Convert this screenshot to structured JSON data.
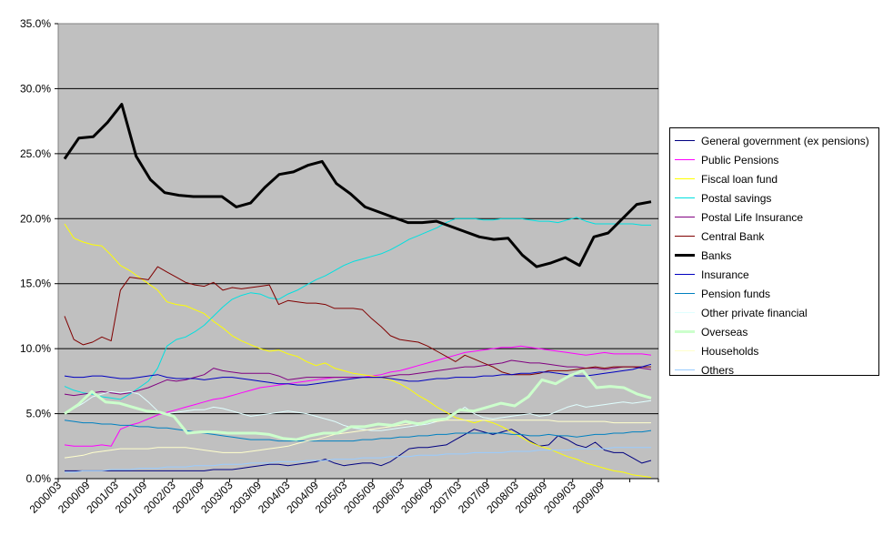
{
  "chart_data": {
    "type": "line",
    "title": "",
    "xlabel": "",
    "ylabel": "",
    "ylim": [
      0,
      35
    ],
    "yticks": [
      "0.0%",
      "5.0%",
      "10.0%",
      "15.0%",
      "20.0%",
      "25.0%",
      "30.0%",
      "35.0%"
    ],
    "x_tick_labels": [
      "2000/03",
      "2000/09",
      "2001/03",
      "2001/09",
      "2002/03",
      "2002/09",
      "2003/03",
      "2003/09",
      "2004/03",
      "2004/09",
      "2005/03",
      "2005/09",
      "2006/03",
      "2006/09",
      "2007/03",
      "2007/09",
      "2008/03",
      "2008/09",
      "2009/03",
      "2009/09"
    ],
    "grid": "horizontal",
    "plot_background": "#c0c0c0",
    "legend_position": "right",
    "series": [
      {
        "name": "General government (ex pensions)",
        "color": "#000080",
        "width": 1,
        "values": [
          0.6,
          0.6,
          0.6,
          0.6,
          0.6,
          0.6,
          0.6,
          0.6,
          0.6,
          0.6,
          0.6,
          0.6,
          0.6,
          0.6,
          0.6,
          0.6,
          0.7,
          0.7,
          0.7,
          0.8,
          0.9,
          1,
          1.1,
          1.1,
          1,
          1.1,
          1.2,
          1.3,
          1.5,
          1.2,
          1,
          1.1,
          1.2,
          1.2,
          1,
          1.3,
          1.8,
          2.3,
          2.4,
          2.4,
          2.5,
          2.6,
          3,
          3.4,
          3.8,
          3.6,
          3.4,
          3.6,
          3.8,
          3.4,
          2.9,
          2.5,
          2.6,
          3.3,
          3,
          2.6,
          2.4,
          2.8,
          2.2,
          2,
          2,
          1.6,
          1.2,
          1.4
        ]
      },
      {
        "name": "Public Pensions",
        "color": "#ff00ff",
        "width": 1,
        "values": [
          2.6,
          2.5,
          2.5,
          2.5,
          2.6,
          2.5,
          3.8,
          4.1,
          4.3,
          4.6,
          4.9,
          5.1,
          5.3,
          5.5,
          5.7,
          5.9,
          6.1,
          6.2,
          6.4,
          6.6,
          6.8,
          7,
          7.1,
          7.2,
          7.3,
          7.4,
          7.5,
          7.6,
          7.7,
          7.8,
          7.8,
          7.8,
          7.8,
          7.9,
          8,
          8.2,
          8.3,
          8.5,
          8.7,
          8.9,
          9.1,
          9.3,
          9.5,
          9.7,
          9.8,
          9.9,
          10,
          10.1,
          10.1,
          10.2,
          10.1,
          10,
          9.9,
          9.8,
          9.7,
          9.6,
          9.5,
          9.6,
          9.7,
          9.6,
          9.6,
          9.6,
          9.6,
          9.5
        ]
      },
      {
        "name": "Fiscal loan fund",
        "color": "#ffff00",
        "width": 1,
        "values": [
          19.6,
          18.5,
          18.2,
          18,
          17.9,
          17.2,
          16.4,
          16,
          15.5,
          15,
          14.5,
          13.6,
          13.4,
          13.3,
          13,
          12.7,
          12.1,
          11.6,
          11,
          10.6,
          10.3,
          10,
          9.8,
          9.9,
          9.6,
          9.4,
          9,
          8.7,
          8.9,
          8.5,
          8.3,
          8.1,
          8,
          7.9,
          7.8,
          7.6,
          7.3,
          6.9,
          6.4,
          6,
          5.5,
          5.1,
          4.7,
          4.5,
          4.3,
          4.5,
          4.3,
          4,
          3.6,
          3.2,
          2.8,
          2.5,
          2.3,
          2,
          1.7,
          1.5,
          1.2,
          1,
          0.8,
          0.6,
          0.5,
          0.3,
          0.2,
          0.1
        ]
      },
      {
        "name": "Postal savings",
        "color": "#00e0e0",
        "width": 1,
        "values": [
          7.1,
          6.8,
          6.6,
          6.5,
          6.3,
          6.2,
          6.1,
          6.5,
          7,
          7.5,
          8.5,
          10.2,
          10.7,
          10.9,
          11.3,
          11.8,
          12.5,
          13.2,
          13.8,
          14.1,
          14.3,
          14.2,
          13.9,
          13.8,
          14.2,
          14.5,
          14.9,
          15.3,
          15.6,
          16,
          16.4,
          16.7,
          16.9,
          17.1,
          17.3,
          17.6,
          18,
          18.4,
          18.7,
          19,
          19.3,
          19.7,
          20,
          20,
          20,
          19.9,
          19.9,
          20,
          20,
          20,
          19.9,
          19.8,
          19.8,
          19.7,
          19.9,
          20.1,
          19.8,
          19.6,
          19.6,
          19.6,
          19.6,
          19.6,
          19.5,
          19.5
        ]
      },
      {
        "name": "Postal Life Insurance",
        "color": "#800080",
        "width": 1,
        "values": [
          6.5,
          6.4,
          6.5,
          6.6,
          6.7,
          6.6,
          6.5,
          6.6,
          6.8,
          7,
          7.3,
          7.6,
          7.5,
          7.6,
          7.8,
          8,
          8.5,
          8.3,
          8.2,
          8.1,
          8.1,
          8.1,
          8.1,
          7.9,
          7.6,
          7.7,
          7.8,
          7.8,
          7.8,
          7.8,
          7.8,
          7.8,
          7.8,
          7.8,
          7.8,
          7.9,
          8,
          8,
          8.1,
          8.2,
          8.3,
          8.4,
          8.5,
          8.6,
          8.6,
          8.7,
          8.8,
          8.9,
          9.1,
          9,
          8.9,
          8.9,
          8.8,
          8.7,
          8.6,
          8.6,
          8.5,
          8.5,
          8.4,
          8.5,
          8.6,
          8.6,
          8.5,
          8.4
        ]
      },
      {
        "name": "Central Bank",
        "color": "#800000",
        "width": 1,
        "values": [
          12.5,
          10.7,
          10.3,
          10.5,
          10.9,
          10.6,
          14.5,
          15.5,
          15.4,
          15.3,
          16.3,
          15.9,
          15.5,
          15.1,
          14.9,
          14.8,
          15.1,
          14.5,
          14.7,
          14.6,
          14.7,
          14.8,
          14.9,
          13.4,
          13.7,
          13.6,
          13.5,
          13.5,
          13.4,
          13.1,
          13.1,
          13.1,
          13,
          12.3,
          11.7,
          11,
          10.7,
          10.6,
          10.5,
          10.2,
          9.8,
          9.4,
          9,
          9.5,
          9.2,
          8.9,
          8.6,
          8.2,
          8,
          8,
          8,
          8.1,
          8.3,
          8.3,
          8.3,
          8.4,
          8.5,
          8.6,
          8.5,
          8.6,
          8.6,
          8.6,
          8.6,
          8.6
        ]
      },
      {
        "name": "Banks",
        "color": "#000000",
        "width": 3,
        "values": [
          24.6,
          26.2,
          26.3,
          27.4,
          28.8,
          24.8,
          23,
          22,
          21.8,
          21.7,
          21.7,
          21.7,
          20.9,
          21.2,
          22.4,
          23.4,
          23.6,
          24.1,
          24.4,
          22.7,
          21.9,
          20.9,
          20.5,
          20.1,
          19.7,
          19.7,
          19.8,
          19.4,
          19,
          18.6,
          18.4,
          18.5,
          17.2,
          16.3,
          16.6,
          17,
          16.4,
          18.6,
          18.9,
          20,
          21.1,
          21.3
        ]
      },
      {
        "name": "Insurance",
        "color": "#0000c0",
        "width": 1,
        "values": [
          7.9,
          7.8,
          7.8,
          7.9,
          7.9,
          7.8,
          7.7,
          7.7,
          7.8,
          7.9,
          8,
          7.8,
          7.7,
          7.7,
          7.7,
          7.6,
          7.7,
          7.8,
          7.8,
          7.7,
          7.6,
          7.5,
          7.4,
          7.3,
          7.3,
          7.2,
          7.2,
          7.3,
          7.4,
          7.5,
          7.6,
          7.7,
          7.8,
          7.8,
          7.8,
          7.7,
          7.6,
          7.5,
          7.5,
          7.6,
          7.7,
          7.7,
          7.8,
          7.8,
          7.8,
          7.9,
          7.9,
          8,
          8,
          8.1,
          8.1,
          8.2,
          8.2,
          8.1,
          8,
          7.9,
          7.9,
          8,
          8.1,
          8.2,
          8.3,
          8.4,
          8.6,
          8.8
        ]
      },
      {
        "name": "Pension funds",
        "color": "#0080c0",
        "width": 1,
        "values": [
          4.5,
          4.4,
          4.3,
          4.3,
          4.2,
          4.2,
          4.1,
          4.1,
          4,
          4,
          3.9,
          3.9,
          3.8,
          3.7,
          3.6,
          3.5,
          3.4,
          3.3,
          3.2,
          3.1,
          3,
          3,
          3,
          2.9,
          2.9,
          2.9,
          2.9,
          2.9,
          2.9,
          2.9,
          2.9,
          2.9,
          3,
          3,
          3.1,
          3.1,
          3.2,
          3.2,
          3.3,
          3.3,
          3.4,
          3.4,
          3.5,
          3.5,
          3.5,
          3.5,
          3.5,
          3.5,
          3.4,
          3.4,
          3.3,
          3.3,
          3.4,
          3.3,
          3.3,
          3.2,
          3.3,
          3.4,
          3.4,
          3.5,
          3.5,
          3.6,
          3.6,
          3.7
        ]
      },
      {
        "name": "Other private financial",
        "color": "#e0ffff",
        "width": 1,
        "values": [
          5,
          5.4,
          5.8,
          6.3,
          6.5,
          6.7,
          6.6,
          6.7,
          6.5,
          5.9,
          5.2,
          5,
          5.1,
          5.2,
          5.3,
          5.3,
          5.5,
          5.4,
          5.2,
          5,
          4.8,
          4.9,
          5,
          5.1,
          5.2,
          5.1,
          5,
          4.8,
          4.6,
          4.4,
          4.1,
          3.9,
          3.8,
          3.7,
          3.7,
          3.8,
          3.9,
          4,
          4.1,
          4.2,
          4.4,
          4.6,
          5,
          5.5,
          5,
          4.7,
          4.6,
          4.7,
          4.8,
          4.9,
          5,
          4.8,
          4.9,
          5.2,
          5.5,
          5.7,
          5.5,
          5.6,
          5.7,
          5.8,
          5.9,
          5.8,
          5.9,
          6
        ]
      },
      {
        "name": "Overseas",
        "color": "#ccffcc",
        "width": 3,
        "values": [
          5,
          5.7,
          6.7,
          5.9,
          5.8,
          5.5,
          5.2,
          5.1,
          4.8,
          3.5,
          3.6,
          3.6,
          3.5,
          3.5,
          3.5,
          3.4,
          3.1,
          3,
          3.3,
          3.5,
          3.5,
          4,
          4,
          4.2,
          4.1,
          4.4,
          4.2,
          4.5,
          4.6,
          5.3,
          5.2,
          5.5,
          5.8,
          5.6,
          6.3,
          7.6,
          7.3,
          7.9,
          8.3,
          7,
          7.1,
          7,
          6.5,
          6.2
        ]
      },
      {
        "name": "Households",
        "color": "#ffffcc",
        "width": 1,
        "values": [
          1.6,
          1.7,
          1.8,
          2,
          2.1,
          2.2,
          2.3,
          2.3,
          2.3,
          2.3,
          2.4,
          2.4,
          2.4,
          2.4,
          2.3,
          2.2,
          2.1,
          2,
          2,
          2,
          2.1,
          2.2,
          2.3,
          2.4,
          2.5,
          2.7,
          2.9,
          3,
          3.2,
          3.4,
          3.5,
          3.6,
          3.7,
          3.8,
          3.9,
          4,
          4.1,
          4.2,
          4.3,
          4.4,
          4.4,
          4.5,
          4.5,
          4.5,
          4.5,
          4.5,
          4.5,
          4.5,
          4.5,
          4.5,
          4.5,
          4.5,
          4.5,
          4.4,
          4.4,
          4.4,
          4.4,
          4.4,
          4.4,
          4.3,
          4.3,
          4.3,
          4.3,
          4.3
        ]
      },
      {
        "name": "Others",
        "color": "#99ccff",
        "width": 1,
        "values": [
          0.5,
          0.5,
          0.6,
          0.6,
          0.6,
          0.7,
          0.7,
          0.7,
          0.8,
          0.8,
          0.8,
          0.9,
          0.9,
          0.9,
          1,
          1,
          1,
          1.1,
          1.1,
          1.1,
          1.2,
          1.2,
          1.2,
          1.3,
          1.3,
          1.3,
          1.4,
          1.4,
          1.4,
          1.5,
          1.5,
          1.5,
          1.6,
          1.6,
          1.6,
          1.7,
          1.7,
          1.7,
          1.8,
          1.8,
          1.8,
          1.9,
          1.9,
          1.9,
          2,
          2,
          2,
          2,
          2.1,
          2.1,
          2.1,
          2.2,
          2.2,
          2.2,
          2.2,
          2.3,
          2.3,
          2.3,
          2.3,
          2.4,
          2.4,
          2.4,
          2.4,
          2.4
        ]
      }
    ]
  }
}
